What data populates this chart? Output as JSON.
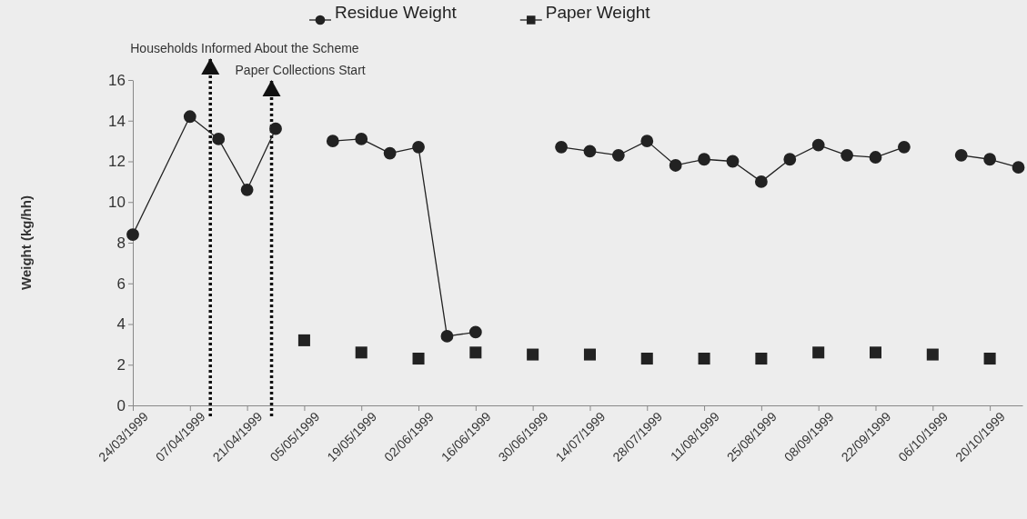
{
  "chart_data": {
    "type": "line",
    "ylabel": "Weight (kg/hh)",
    "xlim": [
      "1999-03-24",
      "1999-10-28"
    ],
    "xticks": [
      {
        "value": "1999-03-24",
        "label": "24/03/1999"
      },
      {
        "value": "1999-04-07",
        "label": "07/04/1999"
      },
      {
        "value": "1999-04-21",
        "label": "21/04/1999"
      },
      {
        "value": "1999-05-05",
        "label": "05/05/1999"
      },
      {
        "value": "1999-05-19",
        "label": "19/05/1999"
      },
      {
        "value": "1999-06-02",
        "label": "02/06/1999"
      },
      {
        "value": "1999-06-16",
        "label": "16/06/1999"
      },
      {
        "value": "1999-06-30",
        "label": "30/06/1999"
      },
      {
        "value": "1999-07-14",
        "label": "14/07/1999"
      },
      {
        "value": "1999-07-28",
        "label": "28/07/1999"
      },
      {
        "value": "1999-08-11",
        "label": "11/08/1999"
      },
      {
        "value": "1999-08-25",
        "label": "25/08/1999"
      },
      {
        "value": "1999-09-08",
        "label": "08/09/1999"
      },
      {
        "value": "1999-09-22",
        "label": "22/09/1999"
      },
      {
        "value": "1999-10-06",
        "label": "06/10/1999"
      },
      {
        "value": "1999-10-20",
        "label": "20/10/1999"
      }
    ],
    "ylim": [
      0,
      16
    ],
    "yticks": [
      0,
      2,
      4,
      6,
      8,
      10,
      12,
      14,
      16
    ],
    "legend": "top",
    "grid": false,
    "series": [
      {
        "name": "Residue Weight",
        "marker": "circle",
        "color": "#222222",
        "x": [
          "1999-03-24",
          "1999-04-07",
          "1999-04-14",
          "1999-04-21",
          "1999-04-28",
          "1999-05-05",
          "1999-05-12",
          "1999-05-19",
          "1999-05-26",
          "1999-06-02",
          "1999-06-09",
          "1999-06-16",
          "1999-06-23",
          "1999-06-30",
          "1999-07-07",
          "1999-07-14",
          "1999-07-21",
          "1999-07-28",
          "1999-08-04",
          "1999-08-11",
          "1999-08-18",
          "1999-08-25",
          "1999-09-01",
          "1999-09-08",
          "1999-09-15",
          "1999-09-22",
          "1999-09-29",
          "1999-10-06",
          "1999-10-13",
          "1999-10-20",
          "1999-10-27"
        ],
        "values": [
          8.4,
          14.2,
          13.1,
          10.6,
          13.6,
          null,
          13.0,
          13.1,
          12.4,
          12.7,
          3.4,
          3.6,
          null,
          null,
          12.7,
          12.5,
          12.3,
          13.0,
          11.8,
          12.1,
          12.0,
          11.0,
          12.1,
          12.8,
          12.3,
          12.2,
          12.7,
          null,
          12.3,
          12.1,
          11.7
        ]
      },
      {
        "name": "Paper Weight",
        "type": "scatter",
        "marker": "square",
        "color": "#222222",
        "x": [
          "1999-05-05",
          "1999-05-19",
          "1999-06-02",
          "1999-06-16",
          "1999-06-30",
          "1999-07-14",
          "1999-07-28",
          "1999-08-11",
          "1999-08-25",
          "1999-09-08",
          "1999-09-22",
          "1999-10-06",
          "1999-10-20"
        ],
        "values": [
          3.2,
          2.6,
          2.3,
          2.6,
          2.5,
          2.5,
          2.3,
          2.3,
          2.3,
          2.6,
          2.6,
          2.5,
          2.3
        ]
      }
    ],
    "ref_lines": [
      {
        "axis": "x",
        "value": "1999-04-12",
        "label": "Households Informed About the Scheme",
        "color": "#111111",
        "line_style": "dotted"
      },
      {
        "axis": "x",
        "value": "1999-04-27",
        "label": "Paper Collections Start",
        "color": "#111111",
        "line_style": "dotted"
      }
    ]
  }
}
